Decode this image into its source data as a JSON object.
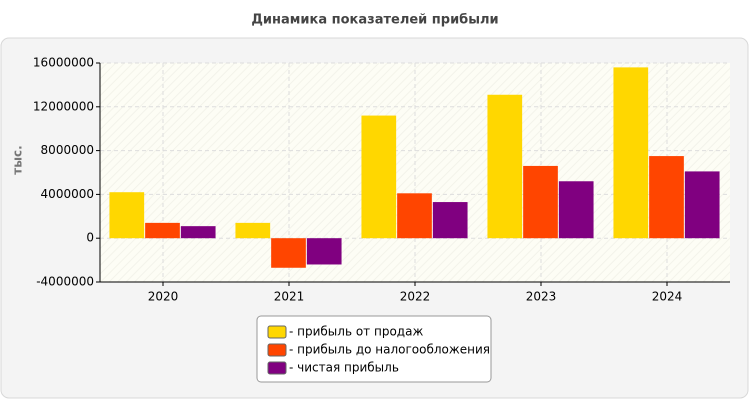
{
  "chart_data": {
    "type": "bar",
    "title": "Динамика показателей прибыли",
    "y_label": "тыс.",
    "categories": [
      "2020",
      "2021",
      "2022",
      "2023",
      "2024"
    ],
    "series": [
      {
        "name": "- прибыль от продаж",
        "color": "#ffd700",
        "values": [
          4200000,
          1400000,
          11200000,
          13100000,
          15600000
        ]
      },
      {
        "name": "- прибыль до налогообложения",
        "color": "#ff4500",
        "values": [
          1400000,
          -2700000,
          4100000,
          6600000,
          7500000
        ]
      },
      {
        "name": "- чистая прибыль",
        "color": "#800080",
        "values": [
          1100000,
          -2400000,
          3300000,
          5200000,
          6100000
        ]
      }
    ],
    "ylim": [
      -4000000,
      16000000
    ],
    "yticks": [
      -4000000,
      0,
      4000000,
      8000000,
      12000000,
      16000000
    ],
    "grid": true
  }
}
